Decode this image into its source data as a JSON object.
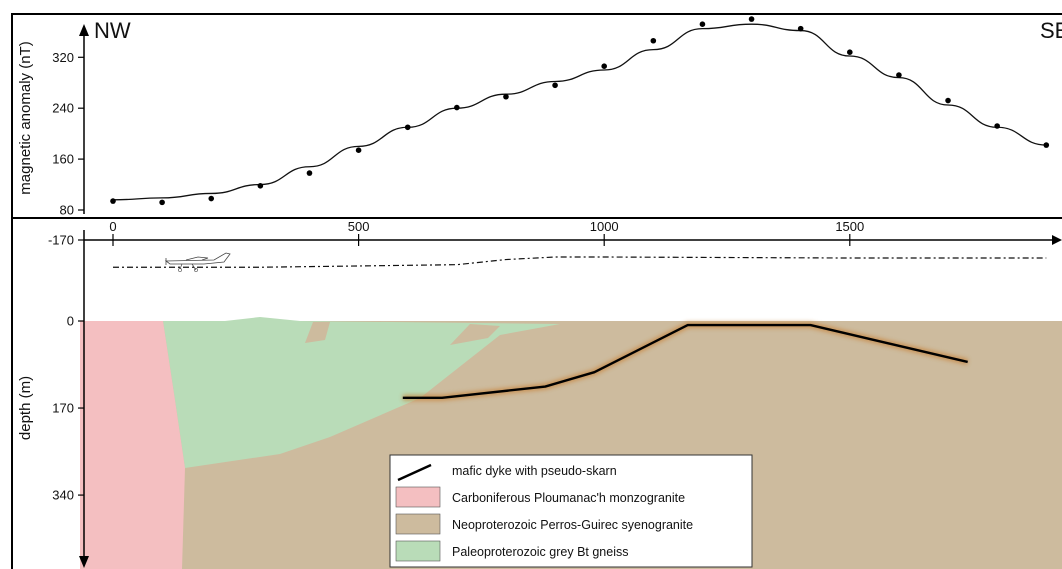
{
  "chart_data": {
    "type": "line",
    "top_panel": {
      "ylabel": "magnetic anomaly (nT)",
      "yticks": [
        "80",
        "160",
        "240",
        "320"
      ],
      "ylim": [
        78,
        380
      ],
      "xlim": [
        -20,
        1900
      ],
      "left_label": "NW",
      "right_label": "SE",
      "points": [
        [
          0,
          94
        ],
        [
          100,
          92
        ],
        [
          200,
          98
        ],
        [
          300,
          118
        ],
        [
          400,
          138
        ],
        [
          500,
          174
        ],
        [
          600,
          210
        ],
        [
          700,
          241
        ],
        [
          800,
          258
        ],
        [
          900,
          276
        ],
        [
          1000,
          306
        ],
        [
          1100,
          346
        ],
        [
          1200,
          372
        ],
        [
          1300,
          380
        ],
        [
          1400,
          365
        ],
        [
          1500,
          328
        ],
        [
          1600,
          292
        ],
        [
          1700,
          252
        ],
        [
          1800,
          212
        ],
        [
          1900,
          182
        ]
      ],
      "fit_curve": [
        [
          0,
          96
        ],
        [
          100,
          99
        ],
        [
          200,
          106
        ],
        [
          300,
          120
        ],
        [
          400,
          148
        ],
        [
          500,
          180
        ],
        [
          600,
          210
        ],
        [
          700,
          240
        ],
        [
          800,
          262
        ],
        [
          900,
          282
        ],
        [
          1000,
          300
        ],
        [
          1100,
          332
        ],
        [
          1200,
          365
        ],
        [
          1300,
          372
        ],
        [
          1400,
          362
        ],
        [
          1500,
          322
        ],
        [
          1600,
          288
        ],
        [
          1700,
          245
        ],
        [
          1800,
          210
        ],
        [
          1900,
          182
        ]
      ]
    },
    "bottom_panel": {
      "ylabel": "depth (m)",
      "yticks": [
        "-170",
        "0",
        "170",
        "340"
      ],
      "xticks": [
        "0",
        "500",
        "1000",
        "1500"
      ],
      "ylim": [
        -170,
        480
      ],
      "flight_line": [
        [
          0,
          -105
        ],
        [
          300,
          -105
        ],
        [
          700,
          -110
        ],
        [
          800,
          -120
        ],
        [
          900,
          -125
        ],
        [
          1000,
          -125
        ],
        [
          1500,
          -123
        ],
        [
          1900,
          -123
        ]
      ],
      "dyke": [
        [
          590,
          150
        ],
        [
          670,
          150
        ],
        [
          880,
          128
        ],
        [
          980,
          100
        ],
        [
          1170,
          8
        ],
        [
          1420,
          8
        ],
        [
          1740,
          80
        ]
      ],
      "legend": [
        {
          "type": "line",
          "label": "mafic dyke with pseudo-skarn",
          "color": "#000000"
        },
        {
          "type": "box",
          "label": "Carboniferous Ploumanac'h monzogranite",
          "color": "#f4bfc1"
        },
        {
          "type": "box",
          "label": "Neoproterozoic Perros-Guirec syenogranite",
          "color": "#cdbb9e"
        },
        {
          "type": "box",
          "label": "Paleoproterozoic grey Bt gneiss",
          "color": "#b9dcb8"
        }
      ]
    }
  },
  "colors": {
    "pink": "#f4bfc1",
    "tan": "#cdbb9e",
    "green": "#b9dcb8",
    "dyke_glow": "#c8853e"
  },
  "icons": {
    "aircraft": "aircraft-icon"
  }
}
